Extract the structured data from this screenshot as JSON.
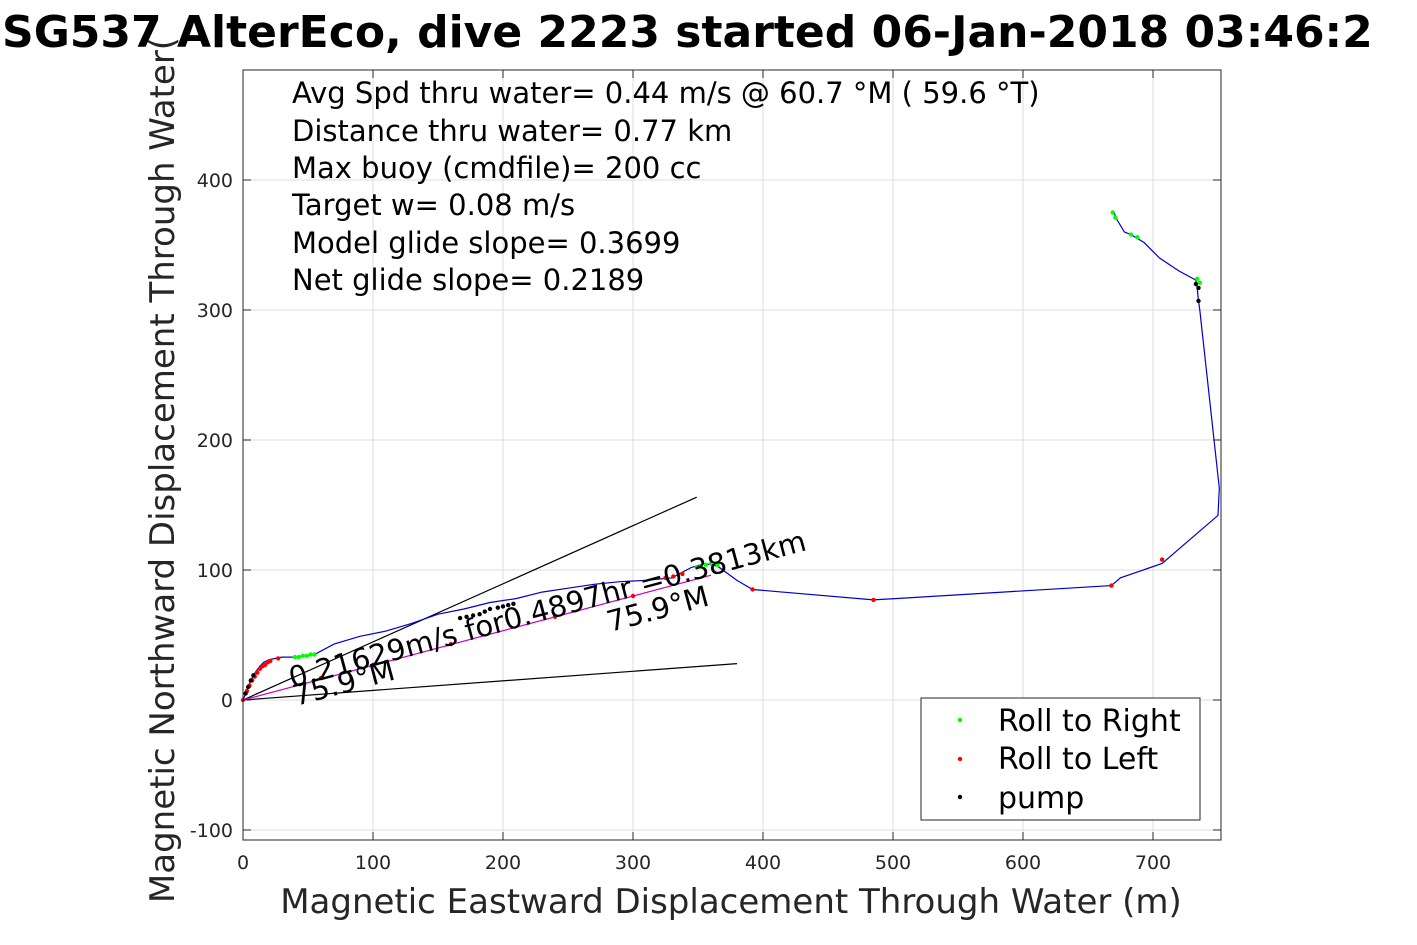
{
  "chart_data": {
    "type": "scatter",
    "title": "SG537 AlterEco, dive 2223 started 06-Jan-2018 03:46:2",
    "xlabel": "Magnetic Eastward Displacement Through Water (m)",
    "ylabel": "Magnetic Northward Displacement Through Water(",
    "xlim": [
      0,
      750
    ],
    "ylim": [
      -100,
      480
    ],
    "xticks": [
      0,
      100,
      200,
      300,
      400,
      500,
      600,
      700
    ],
    "yticks": [
      -100,
      0,
      100,
      200,
      300,
      400
    ],
    "grid": true,
    "info_lines": [
      "Avg Spd thru water=  0.44 m/s @  60.7 °M ( 59.6 °T)",
      "Distance thru water=  0.77 km",
      "Max buoy (cmdfile)= 200 cc",
      "Target w= 0.08 m/s",
      "Model glide slope= 0.3699",
      "Net glide slope= 0.2189"
    ],
    "annotations": {
      "current_vector": "0.21629m/s for0.4897hr =0.3813km",
      "heading_1": "75.9°M",
      "heading_2": "75.9°M"
    },
    "track": {
      "x": [
        0,
        2,
        4,
        6,
        8,
        10,
        13,
        16,
        20,
        25,
        30,
        40,
        55,
        70,
        90,
        110,
        130,
        150,
        170,
        190,
        210,
        230,
        250,
        270,
        290,
        310,
        330,
        345,
        355,
        365,
        380,
        392,
        485,
        668,
        675,
        707,
        750,
        751,
        736,
        735,
        734,
        733,
        720,
        705,
        693,
        683,
        678,
        672,
        670
      ],
      "y": [
        0,
        5,
        10,
        15,
        19,
        22,
        26,
        29,
        31,
        32,
        33,
        33,
        35,
        43,
        49,
        53,
        59,
        66,
        70,
        75,
        78,
        83,
        86,
        89,
        91,
        92,
        94,
        102,
        105,
        103,
        92,
        85,
        77,
        88,
        94,
        105,
        142,
        163,
        300,
        307,
        317,
        323,
        330,
        340,
        352,
        358,
        360,
        370,
        375
      ]
    },
    "lines": [
      {
        "name": "",
        "x": [
          0,
          349
        ],
        "y": [
          0,
          156
        ],
        "color": "#000000"
      },
      {
        "name": "",
        "x": [
          0,
          380
        ],
        "y": [
          0,
          28
        ],
        "color": "#000000"
      },
      {
        "name": "",
        "x": [
          0,
          360
        ],
        "y": [
          0,
          96
        ],
        "color": "#cc00cc"
      }
    ],
    "series": [
      {
        "name": "Roll to Right",
        "color": "#00ff00",
        "x": [
          40,
          43,
          46,
          49,
          52,
          55,
          349,
          352,
          356,
          360,
          365,
          669,
          671,
          683,
          688,
          734,
          736
        ],
        "y": [
          33,
          33,
          34,
          34,
          35,
          35,
          102,
          103,
          104,
          105,
          104,
          375,
          371,
          358,
          356,
          324,
          321
        ]
      },
      {
        "name": "Roll to Left",
        "color": "#ff0000",
        "x": [
          0,
          3,
          5,
          7,
          9,
          11,
          13,
          15,
          17,
          19,
          21,
          27,
          60,
          100,
          160,
          240,
          300,
          325,
          331,
          338,
          392,
          485,
          668,
          707
        ],
        "y": [
          0,
          7,
          11,
          15,
          18,
          21,
          24,
          26,
          27,
          29,
          30,
          32,
          17,
          27,
          43,
          64,
          80,
          94,
          95,
          97,
          85,
          77,
          88,
          108
        ]
      },
      {
        "name": "pump",
        "color": "#000000",
        "x": [
          2,
          4,
          6,
          8,
          167,
          172,
          177,
          182,
          186,
          190,
          196,
          200,
          204,
          208,
          735,
          735,
          733
        ],
        "y": [
          5,
          10,
          15,
          19,
          63,
          64,
          65,
          66,
          68,
          70,
          71,
          72,
          73,
          74,
          307,
          317,
          320
        ]
      }
    ],
    "legend": {
      "placement": "bottom-right",
      "entries": [
        "Roll to Right",
        "Roll to Left",
        "pump"
      ]
    }
  }
}
